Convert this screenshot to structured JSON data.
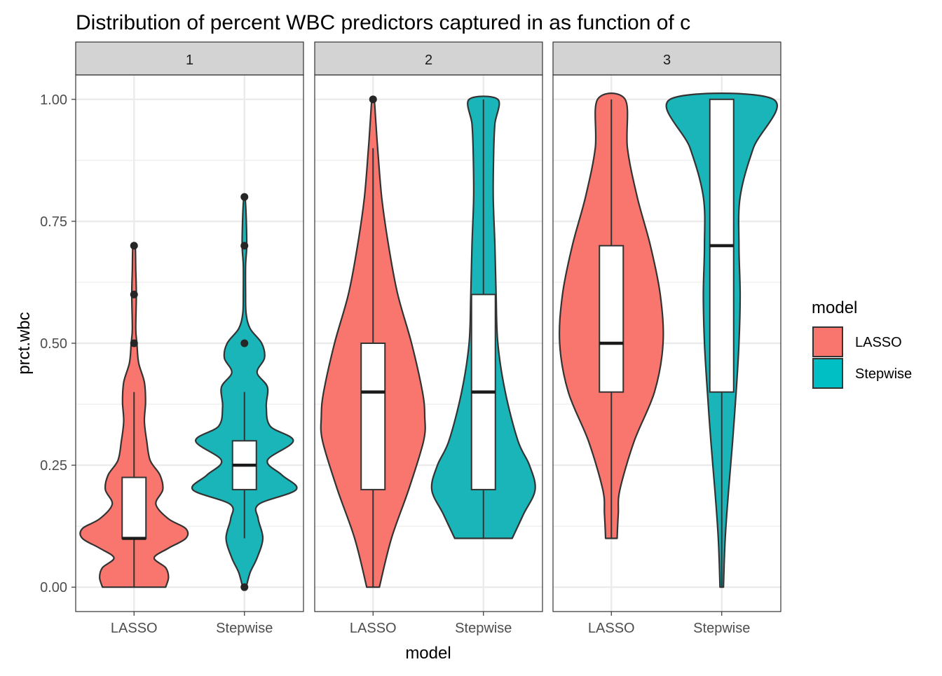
{
  "chart_data": {
    "type": "violin",
    "title": "Distribution of percent WBC predictors captured in as function of c",
    "xlabel": "model",
    "ylabel": "prct.wbc",
    "ylim": [
      -0.05,
      1.05
    ],
    "yticks": [
      0.0,
      0.25,
      0.5,
      0.75,
      1.0
    ],
    "ytick_labels": [
      "0.00",
      "0.25",
      "0.50",
      "0.75",
      "1.00"
    ],
    "categories": [
      "LASSO",
      "Stepwise"
    ],
    "grid": true,
    "legend": {
      "title": "model",
      "placement": "right",
      "entries": [
        {
          "label": "LASSO",
          "color": "#F8766D"
        },
        {
          "label": "Stepwise",
          "color": "#00BFC4"
        }
      ]
    },
    "colors": {
      "LASSO": "#F8766D",
      "Stepwise": "#1AB5B8",
      "strip": "#D3D3D3"
    },
    "facets": [
      {
        "label": "1",
        "groups": [
          {
            "model": "LASSO",
            "box": {
              "q1": 0.1,
              "median": 0.1,
              "q3": 0.225,
              "whisker_low": 0.0,
              "whisker_high": 0.4
            },
            "outliers": [
              0.5,
              0.6,
              0.7
            ],
            "density": [
              [
                0.0,
                0.55
              ],
              [
                0.02,
                0.6
              ],
              [
                0.04,
                0.55
              ],
              [
                0.06,
                0.35
              ],
              [
                0.08,
                0.6
              ],
              [
                0.1,
                0.9
              ],
              [
                0.12,
                0.9
              ],
              [
                0.14,
                0.6
              ],
              [
                0.17,
                0.38
              ],
              [
                0.2,
                0.5
              ],
              [
                0.23,
                0.45
              ],
              [
                0.26,
                0.28
              ],
              [
                0.3,
                0.22
              ],
              [
                0.34,
                0.18
              ],
              [
                0.38,
                0.2
              ],
              [
                0.42,
                0.18
              ],
              [
                0.46,
                0.08
              ],
              [
                0.5,
                0.05
              ],
              [
                0.53,
                0.03
              ],
              [
                0.6,
                0.04
              ],
              [
                0.65,
                0.03
              ],
              [
                0.7,
                0.02
              ]
            ]
          },
          {
            "model": "Stepwise",
            "box": {
              "q1": 0.2,
              "median": 0.25,
              "q3": 0.3,
              "whisker_low": 0.1,
              "whisker_high": 0.4
            },
            "outliers": [
              0.0,
              0.5,
              0.7,
              0.8
            ],
            "density": [
              [
                0.0,
                0.03
              ],
              [
                0.03,
                0.1
              ],
              [
                0.06,
                0.22
              ],
              [
                0.1,
                0.32
              ],
              [
                0.14,
                0.24
              ],
              [
                0.17,
                0.25
              ],
              [
                0.2,
                0.9
              ],
              [
                0.23,
                0.65
              ],
              [
                0.26,
                0.4
              ],
              [
                0.3,
                0.85
              ],
              [
                0.33,
                0.45
              ],
              [
                0.37,
                0.38
              ],
              [
                0.41,
                0.4
              ],
              [
                0.44,
                0.22
              ],
              [
                0.47,
                0.35
              ],
              [
                0.5,
                0.3
              ],
              [
                0.53,
                0.1
              ],
              [
                0.56,
                0.03
              ],
              [
                0.6,
                0.02
              ],
              [
                0.66,
                0.02
              ],
              [
                0.7,
                0.04
              ],
              [
                0.76,
                0.03
              ],
              [
                0.8,
                0.01
              ]
            ]
          }
        ]
      },
      {
        "label": "2",
        "groups": [
          {
            "model": "LASSO",
            "box": {
              "q1": 0.2,
              "median": 0.4,
              "q3": 0.5,
              "whisker_low": 0.0,
              "whisker_high": 0.9
            },
            "outliers": [
              1.0
            ],
            "density": [
              [
                0.0,
                0.11
              ],
              [
                0.1,
                0.32
              ],
              [
                0.2,
                0.62
              ],
              [
                0.3,
                0.88
              ],
              [
                0.35,
                0.9
              ],
              [
                0.4,
                0.86
              ],
              [
                0.5,
                0.67
              ],
              [
                0.6,
                0.43
              ],
              [
                0.7,
                0.27
              ],
              [
                0.8,
                0.15
              ],
              [
                0.9,
                0.08
              ],
              [
                0.95,
                0.05
              ],
              [
                1.0,
                0.02
              ]
            ]
          },
          {
            "model": "Stepwise",
            "box": {
              "q1": 0.2,
              "median": 0.4,
              "q3": 0.6,
              "whisker_low": 0.1,
              "whisker_high": 1.0
            },
            "outliers": [],
            "density": [
              [
                0.1,
                0.5
              ],
              [
                0.15,
                0.7
              ],
              [
                0.2,
                0.9
              ],
              [
                0.25,
                0.8
              ],
              [
                0.3,
                0.6
              ],
              [
                0.4,
                0.38
              ],
              [
                0.5,
                0.25
              ],
              [
                0.6,
                0.22
              ],
              [
                0.7,
                0.2
              ],
              [
                0.8,
                0.17
              ],
              [
                0.9,
                0.18
              ],
              [
                0.95,
                0.2
              ],
              [
                1.0,
                0.25
              ]
            ]
          }
        ]
      },
      {
        "label": "3",
        "groups": [
          {
            "model": "LASSO",
            "box": {
              "q1": 0.4,
              "median": 0.5,
              "q3": 0.7,
              "whisker_low": 0.1,
              "whisker_high": 1.0
            },
            "outliers": [],
            "density": [
              [
                0.1,
                0.1
              ],
              [
                0.15,
                0.12
              ],
              [
                0.2,
                0.15
              ],
              [
                0.3,
                0.4
              ],
              [
                0.4,
                0.75
              ],
              [
                0.5,
                0.9
              ],
              [
                0.6,
                0.85
              ],
              [
                0.7,
                0.68
              ],
              [
                0.8,
                0.45
              ],
              [
                0.9,
                0.28
              ],
              [
                1.0,
                0.24
              ]
            ]
          },
          {
            "model": "Stepwise",
            "box": {
              "q1": 0.4,
              "median": 0.7,
              "q3": 1.0,
              "whisker_low": 0.0,
              "whisker_high": 1.0
            },
            "outliers": [],
            "density": [
              [
                0.0,
                0.03
              ],
              [
                0.1,
                0.06
              ],
              [
                0.2,
                0.12
              ],
              [
                0.3,
                0.19
              ],
              [
                0.4,
                0.25
              ],
              [
                0.5,
                0.3
              ],
              [
                0.6,
                0.32
              ],
              [
                0.7,
                0.3
              ],
              [
                0.8,
                0.32
              ],
              [
                0.9,
                0.55
              ],
              [
                1.0,
                0.9
              ]
            ]
          }
        ]
      }
    ]
  }
}
